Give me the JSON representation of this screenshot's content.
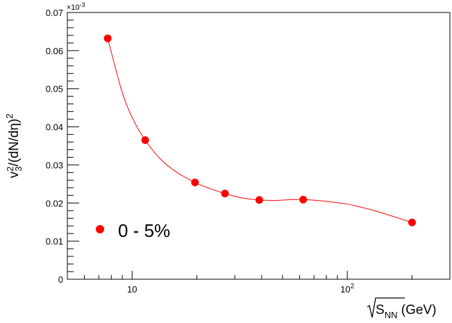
{
  "chart_data": {
    "type": "scatter",
    "title": "",
    "xlabel": {
      "base": "S",
      "sub": "NN",
      "unit": " (GeV)"
    },
    "ylabel": {
      "v": "v",
      "sup": "2",
      "sub": "3",
      "rest": "/(dN/dη)",
      "rest_sup": "2"
    },
    "x_scale": "log",
    "xlim": [
      5,
      300
    ],
    "ylim": [
      0,
      0.07
    ],
    "y_multiplier": "×10",
    "y_multiplier_exp": "-3",
    "y_ticks": [
      {
        "value": 0,
        "label": "0"
      },
      {
        "value": 0.01,
        "label": "0.01"
      },
      {
        "value": 0.02,
        "label": "0.02"
      },
      {
        "value": 0.03,
        "label": "0.03"
      },
      {
        "value": 0.04,
        "label": "0.04"
      },
      {
        "value": 0.05,
        "label": "0.05"
      },
      {
        "value": 0.06,
        "label": "0.06"
      },
      {
        "value": 0.07,
        "label": "0.07"
      }
    ],
    "x_ticks": [
      {
        "value": 10,
        "base": "10",
        "exp": ""
      },
      {
        "value": 100,
        "base": "10",
        "exp": "2"
      }
    ],
    "series": [
      {
        "name": "0 - 5%",
        "color": "#ff0000",
        "marker": "circle",
        "points": [
          {
            "x": 7.7,
            "y": 0.0632
          },
          {
            "x": 11.5,
            "y": 0.0365
          },
          {
            "x": 19.6,
            "y": 0.0254
          },
          {
            "x": 27,
            "y": 0.0225
          },
          {
            "x": 39,
            "y": 0.0208
          },
          {
            "x": 62.4,
            "y": 0.0209
          },
          {
            "x": 200,
            "y": 0.0149
          }
        ],
        "curve": [
          {
            "x": 7.7,
            "y": 0.0632
          },
          {
            "x": 9.0,
            "y": 0.049
          },
          {
            "x": 10.2,
            "y": 0.0415
          },
          {
            "x": 11.5,
            "y": 0.0365
          },
          {
            "x": 13.5,
            "y": 0.0316
          },
          {
            "x": 16.0,
            "y": 0.0282
          },
          {
            "x": 19.6,
            "y": 0.0254
          },
          {
            "x": 23.0,
            "y": 0.0238
          },
          {
            "x": 27,
            "y": 0.0225
          },
          {
            "x": 32.0,
            "y": 0.0214
          },
          {
            "x": 39,
            "y": 0.0208
          },
          {
            "x": 47,
            "y": 0.0207
          },
          {
            "x": 55,
            "y": 0.0209
          },
          {
            "x": 62.4,
            "y": 0.0209
          },
          {
            "x": 75,
            "y": 0.0206
          },
          {
            "x": 100,
            "y": 0.0197
          },
          {
            "x": 130,
            "y": 0.0182
          },
          {
            "x": 165,
            "y": 0.0164
          },
          {
            "x": 200,
            "y": 0.0149
          }
        ]
      }
    ],
    "legend_position": "bottom-left",
    "grid": false
  }
}
